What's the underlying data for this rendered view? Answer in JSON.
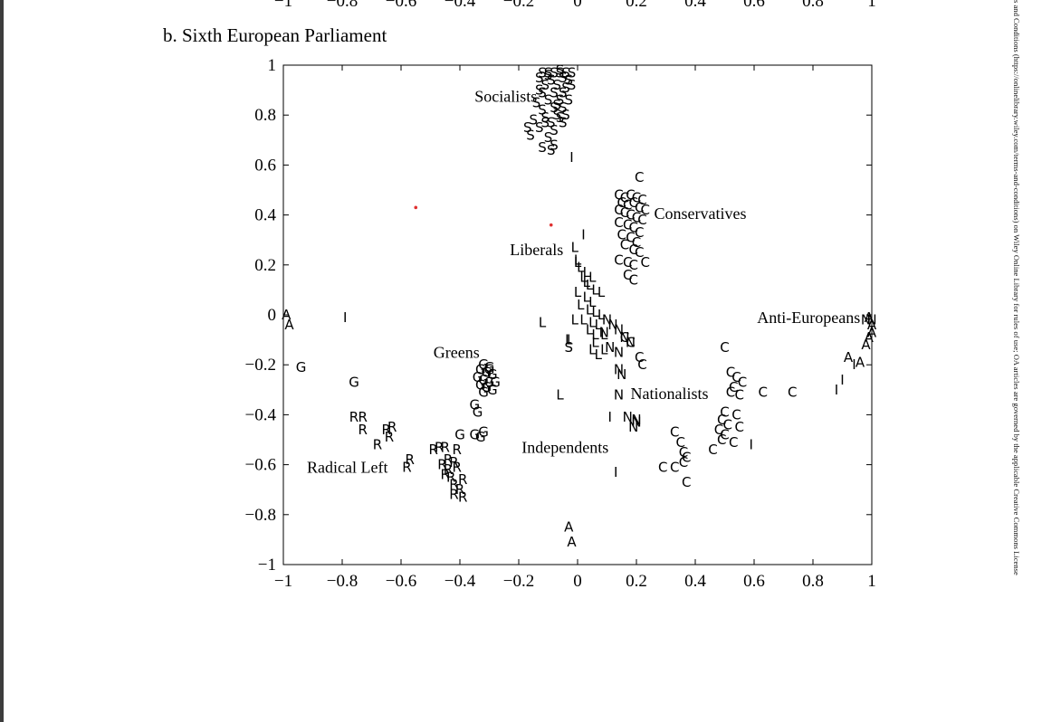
{
  "chart_data": {
    "type": "scatter",
    "title": "b. Sixth European Parliament",
    "xlim": [
      -1,
      1
    ],
    "ylim": [
      -1,
      1
    ],
    "grid": false,
    "xticks": [
      "−1",
      "−0.8",
      "−0.6",
      "−0.4",
      "−0.2",
      "0",
      "0.2",
      "0.4",
      "0.6",
      "0.8",
      "1"
    ],
    "xtick_values": [
      -1,
      -0.8,
      -0.6,
      -0.4,
      -0.2,
      0,
      0.2,
      0.4,
      0.6,
      0.8,
      1
    ],
    "yticks": [
      "1",
      "0.8",
      "0.6",
      "0.4",
      "0.2",
      "0",
      "−0.2",
      "−0.4",
      "−0.6",
      "−0.8",
      "−1"
    ],
    "ytick_values": [
      1,
      0.8,
      0.6,
      0.4,
      0.2,
      0,
      -0.2,
      -0.4,
      -0.6,
      -0.8,
      -1
    ],
    "top_partial_axis_labels": [
      "−1",
      "−0.8",
      "−0.6",
      "−0.4",
      "−0.2",
      "0",
      "0.2",
      "0.4",
      "0.6",
      "0.8",
      "1"
    ],
    "annotations": [
      {
        "text": "Socialists",
        "x": -0.35,
        "y": 0.875
      },
      {
        "text": "Conservatives",
        "x": 0.26,
        "y": 0.405
      },
      {
        "text": "Liberals",
        "x": -0.23,
        "y": 0.26
      },
      {
        "text": "Anti-Europeans",
        "x": 0.61,
        "y": -0.01
      },
      {
        "text": "Greens",
        "x": -0.49,
        "y": -0.15
      },
      {
        "text": "Nationalists",
        "x": 0.18,
        "y": -0.315
      },
      {
        "text": "Independents",
        "x": -0.19,
        "y": -0.53
      },
      {
        "text": "Radical Left",
        "x": -0.92,
        "y": -0.61
      }
    ],
    "series": [
      {
        "symbol": "S",
        "color": "#000000",
        "points": [
          [
            -0.12,
            0.97
          ],
          [
            -0.1,
            0.97
          ],
          [
            -0.08,
            0.97
          ],
          [
            -0.06,
            0.97
          ],
          [
            -0.04,
            0.97
          ],
          [
            -0.02,
            0.97
          ],
          [
            -0.13,
            0.95
          ],
          [
            -0.09,
            0.94
          ],
          [
            -0.05,
            0.95
          ],
          [
            -0.03,
            0.94
          ],
          [
            -0.11,
            0.92
          ],
          [
            -0.07,
            0.92
          ],
          [
            -0.04,
            0.91
          ],
          [
            -0.02,
            0.92
          ],
          [
            -0.12,
            0.89
          ],
          [
            -0.08,
            0.89
          ],
          [
            -0.05,
            0.89
          ],
          [
            -0.1,
            0.86
          ],
          [
            -0.06,
            0.86
          ],
          [
            -0.03,
            0.86
          ],
          [
            -0.14,
            0.85
          ],
          [
            -0.08,
            0.83
          ],
          [
            -0.05,
            0.83
          ],
          [
            -0.12,
            0.82
          ],
          [
            -0.04,
            0.8
          ],
          [
            -0.07,
            0.8
          ],
          [
            -0.11,
            0.79
          ],
          [
            -0.15,
            0.78
          ],
          [
            -0.09,
            0.77
          ],
          [
            -0.05,
            0.77
          ],
          [
            -0.17,
            0.75
          ],
          [
            -0.13,
            0.75
          ],
          [
            -0.08,
            0.74
          ],
          [
            -0.16,
            0.72
          ],
          [
            -0.1,
            0.71
          ],
          [
            -0.08,
            0.68
          ],
          [
            -0.12,
            0.67
          ],
          [
            -0.09,
            0.66
          ],
          [
            -0.03,
            -0.13
          ],
          [
            -0.1,
            0.96
          ],
          [
            -0.06,
            0.98
          ],
          [
            -0.13,
            0.9
          ],
          [
            -0.07,
            0.84
          ],
          [
            -0.11,
            0.77
          ],
          [
            -0.06,
            0.79
          ]
        ]
      },
      {
        "symbol": "C",
        "color": "#000000",
        "points": [
          [
            0.21,
            0.55
          ],
          [
            0.14,
            0.48
          ],
          [
            0.16,
            0.47
          ],
          [
            0.18,
            0.48
          ],
          [
            0.2,
            0.47
          ],
          [
            0.22,
            0.46
          ],
          [
            0.15,
            0.45
          ],
          [
            0.17,
            0.44
          ],
          [
            0.19,
            0.45
          ],
          [
            0.21,
            0.43
          ],
          [
            0.23,
            0.42
          ],
          [
            0.14,
            0.42
          ],
          [
            0.16,
            0.41
          ],
          [
            0.18,
            0.4
          ],
          [
            0.2,
            0.39
          ],
          [
            0.22,
            0.38
          ],
          [
            0.14,
            0.37
          ],
          [
            0.17,
            0.36
          ],
          [
            0.19,
            0.35
          ],
          [
            0.21,
            0.33
          ],
          [
            0.15,
            0.32
          ],
          [
            0.18,
            0.31
          ],
          [
            0.2,
            0.29
          ],
          [
            0.16,
            0.28
          ],
          [
            0.19,
            0.26
          ],
          [
            0.21,
            0.25
          ],
          [
            0.14,
            0.22
          ],
          [
            0.17,
            0.21
          ],
          [
            0.19,
            0.2
          ],
          [
            0.23,
            0.21
          ],
          [
            0.17,
            0.16
          ],
          [
            0.19,
            0.14
          ],
          [
            0.16,
            -0.09
          ],
          [
            0.18,
            -0.11
          ],
          [
            0.21,
            -0.17
          ],
          [
            0.22,
            -0.2
          ],
          [
            0.5,
            -0.13
          ],
          [
            0.52,
            -0.23
          ],
          [
            0.54,
            -0.25
          ],
          [
            0.56,
            -0.27
          ],
          [
            0.53,
            -0.29
          ],
          [
            0.52,
            -0.31
          ],
          [
            0.55,
            -0.32
          ],
          [
            0.63,
            -0.31
          ],
          [
            0.73,
            -0.31
          ],
          [
            0.5,
            -0.39
          ],
          [
            0.54,
            -0.4
          ],
          [
            0.49,
            -0.42
          ],
          [
            0.51,
            -0.44
          ],
          [
            0.55,
            -0.45
          ],
          [
            0.48,
            -0.46
          ],
          [
            0.5,
            -0.48
          ],
          [
            0.49,
            -0.5
          ],
          [
            0.53,
            -0.51
          ],
          [
            0.46,
            -0.54
          ],
          [
            0.33,
            -0.47
          ],
          [
            0.35,
            -0.51
          ],
          [
            0.36,
            -0.55
          ],
          [
            0.37,
            -0.57
          ],
          [
            0.36,
            -0.59
          ],
          [
            0.29,
            -0.61
          ],
          [
            0.33,
            -0.61
          ],
          [
            0.37,
            -0.67
          ]
        ]
      },
      {
        "symbol": "L",
        "color": "#000000",
        "points": [
          [
            -0.01,
            0.27
          ],
          [
            0.0,
            0.22
          ],
          [
            0.01,
            0.19
          ],
          [
            0.03,
            0.17
          ],
          [
            0.05,
            0.15
          ],
          [
            0.02,
            0.15
          ],
          [
            0.04,
            0.12
          ],
          [
            0.06,
            0.1
          ],
          [
            0.08,
            0.09
          ],
          [
            0.0,
            0.09
          ],
          [
            0.03,
            0.07
          ],
          [
            0.05,
            0.05
          ],
          [
            0.01,
            0.04
          ],
          [
            0.04,
            0.02
          ],
          [
            0.06,
            0.01
          ],
          [
            0.08,
            0.0
          ],
          [
            -0.12,
            -0.03
          ],
          [
            0.02,
            -0.02
          ],
          [
            0.05,
            -0.03
          ],
          [
            0.07,
            -0.04
          ],
          [
            0.04,
            -0.06
          ],
          [
            0.06,
            -0.08
          ],
          [
            0.09,
            -0.08
          ],
          [
            -0.03,
            -0.1
          ],
          [
            0.06,
            -0.11
          ],
          [
            0.05,
            -0.14
          ],
          [
            0.07,
            -0.16
          ],
          [
            0.09,
            -0.14
          ],
          [
            -0.06,
            -0.32
          ],
          [
            0.0,
            0.21
          ],
          [
            0.03,
            0.13
          ],
          [
            -0.01,
            -0.02
          ]
        ]
      },
      {
        "symbol": "N",
        "color": "#000000",
        "points": [
          [
            0.1,
            -0.02
          ],
          [
            0.12,
            -0.04
          ],
          [
            0.14,
            -0.06
          ],
          [
            0.16,
            -0.09
          ],
          [
            0.18,
            -0.11
          ],
          [
            0.11,
            -0.13
          ],
          [
            0.14,
            -0.15
          ],
          [
            0.15,
            -0.24
          ],
          [
            0.14,
            -0.22
          ],
          [
            0.14,
            -0.32
          ],
          [
            0.17,
            -0.41
          ],
          [
            0.2,
            -0.42
          ],
          [
            0.19,
            -0.45
          ],
          [
            0.2,
            -0.43
          ],
          [
            0.98,
            -0.02
          ],
          [
            1.0,
            -0.02
          ],
          [
            0.09,
            -0.07
          ]
        ]
      },
      {
        "symbol": "A",
        "color": "#000000",
        "points": [
          [
            -0.99,
            0.0
          ],
          [
            -0.98,
            -0.04
          ],
          [
            0.99,
            -0.01
          ],
          [
            1.0,
            -0.04
          ],
          [
            1.0,
            -0.07
          ],
          [
            0.99,
            -0.09
          ],
          [
            0.98,
            -0.12
          ],
          [
            0.92,
            -0.17
          ],
          [
            0.96,
            -0.19
          ],
          [
            -0.03,
            -0.85
          ],
          [
            -0.02,
            -0.91
          ]
        ]
      },
      {
        "symbol": "I",
        "color": "#000000",
        "points": [
          [
            -0.02,
            0.63
          ],
          [
            0.02,
            0.32
          ],
          [
            -0.79,
            -0.01
          ],
          [
            0.94,
            -0.2
          ],
          [
            0.9,
            -0.26
          ],
          [
            0.88,
            -0.3
          ],
          [
            0.11,
            -0.41
          ],
          [
            0.59,
            -0.52
          ],
          [
            0.13,
            -0.63
          ],
          [
            -0.03,
            -0.1
          ]
        ]
      },
      {
        "symbol": "G",
        "color": "#000000",
        "points": [
          [
            -0.94,
            -0.21
          ],
          [
            -0.76,
            -0.27
          ],
          [
            -0.32,
            -0.2
          ],
          [
            -0.3,
            -0.21
          ],
          [
            -0.33,
            -0.22
          ],
          [
            -0.31,
            -0.23
          ],
          [
            -0.29,
            -0.24
          ],
          [
            -0.34,
            -0.25
          ],
          [
            -0.32,
            -0.26
          ],
          [
            -0.3,
            -0.27
          ],
          [
            -0.33,
            -0.28
          ],
          [
            -0.31,
            -0.29
          ],
          [
            -0.29,
            -0.3
          ],
          [
            -0.32,
            -0.31
          ],
          [
            -0.35,
            -0.36
          ],
          [
            -0.34,
            -0.39
          ],
          [
            -0.4,
            -0.48
          ],
          [
            -0.35,
            -0.48
          ],
          [
            -0.33,
            -0.49
          ],
          [
            -0.32,
            -0.47
          ],
          [
            -0.3,
            -0.22
          ],
          [
            -0.28,
            -0.27
          ]
        ]
      },
      {
        "symbol": "R",
        "color": "#000000",
        "points": [
          [
            -0.76,
            -0.41
          ],
          [
            -0.73,
            -0.41
          ],
          [
            -0.73,
            -0.46
          ],
          [
            -0.65,
            -0.46
          ],
          [
            -0.63,
            -0.45
          ],
          [
            -0.64,
            -0.49
          ],
          [
            -0.68,
            -0.52
          ],
          [
            -0.57,
            -0.58
          ],
          [
            -0.58,
            -0.61
          ],
          [
            -0.47,
            -0.53
          ],
          [
            -0.45,
            -0.53
          ],
          [
            -0.41,
            -0.54
          ],
          [
            -0.49,
            -0.54
          ],
          [
            -0.44,
            -0.58
          ],
          [
            -0.42,
            -0.59
          ],
          [
            -0.46,
            -0.6
          ],
          [
            -0.44,
            -0.62
          ],
          [
            -0.41,
            -0.61
          ],
          [
            -0.45,
            -0.64
          ],
          [
            -0.43,
            -0.65
          ],
          [
            -0.39,
            -0.66
          ],
          [
            -0.42,
            -0.68
          ],
          [
            -0.4,
            -0.7
          ],
          [
            -0.42,
            -0.72
          ],
          [
            -0.39,
            -0.73
          ]
        ]
      },
      {
        "symbol": "•",
        "color": "#e03030",
        "points": [
          [
            -0.55,
            0.43
          ],
          [
            -0.09,
            0.36
          ]
        ]
      }
    ]
  },
  "side_text": "s and Conditions (https://onlinelibrary.wiley.com/terms-and-conditions) on Wiley Online Library for rules of use; OA articles are governed by the applicable Creative Commons License"
}
